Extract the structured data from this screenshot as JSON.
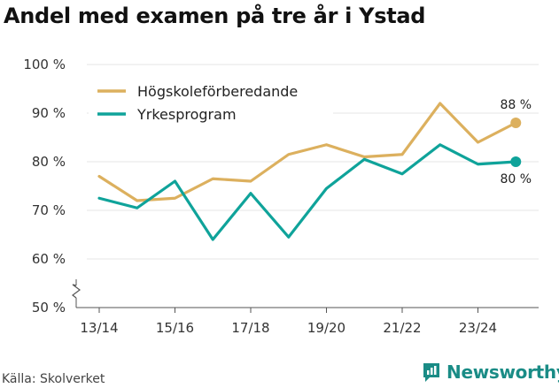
{
  "title": "Andel med examen på tre år i Ystad",
  "source": "Källa: Skolverket",
  "brand": {
    "name": "Newsworthy",
    "icon": "newsworthy-logo-icon"
  },
  "colors": {
    "hogskole": "#dcb05e",
    "yrkes": "#0fa39a",
    "grid": "#e6e6e6",
    "brand": "#1a8c86"
  },
  "chart_data": {
    "type": "line",
    "title": "Andel med examen på tre år i Ystad",
    "x": [
      "13/14",
      "14/15",
      "15/16",
      "16/17",
      "17/18",
      "18/19",
      "19/20",
      "20/21",
      "21/22",
      "22/23",
      "23/24",
      "24/25"
    ],
    "x_tick_labels": [
      "13/14",
      "15/16",
      "17/18",
      "19/20",
      "21/22",
      "23/24"
    ],
    "y_ticks": [
      50,
      60,
      70,
      80,
      90,
      100
    ],
    "y_tick_labels": [
      "50 %",
      "60 %",
      "70 %",
      "80 %",
      "90 %",
      "100 %"
    ],
    "ylim": [
      50,
      100
    ],
    "y_axis_break": true,
    "grid": true,
    "legend_position": "top-left",
    "series": [
      {
        "name": "Högskoleförberedande",
        "color": "#dcb05e",
        "values": [
          77,
          72,
          72.5,
          76.5,
          76,
          81.5,
          83.5,
          81,
          81.5,
          92,
          84,
          88
        ],
        "end_label": "88 %"
      },
      {
        "name": "Yrkesprogram",
        "color": "#0fa39a",
        "values": [
          72.5,
          70.5,
          76,
          64,
          73.5,
          64.5,
          74.5,
          80.5,
          77.5,
          83.5,
          79.5,
          80
        ],
        "end_label": "80 %"
      }
    ]
  }
}
